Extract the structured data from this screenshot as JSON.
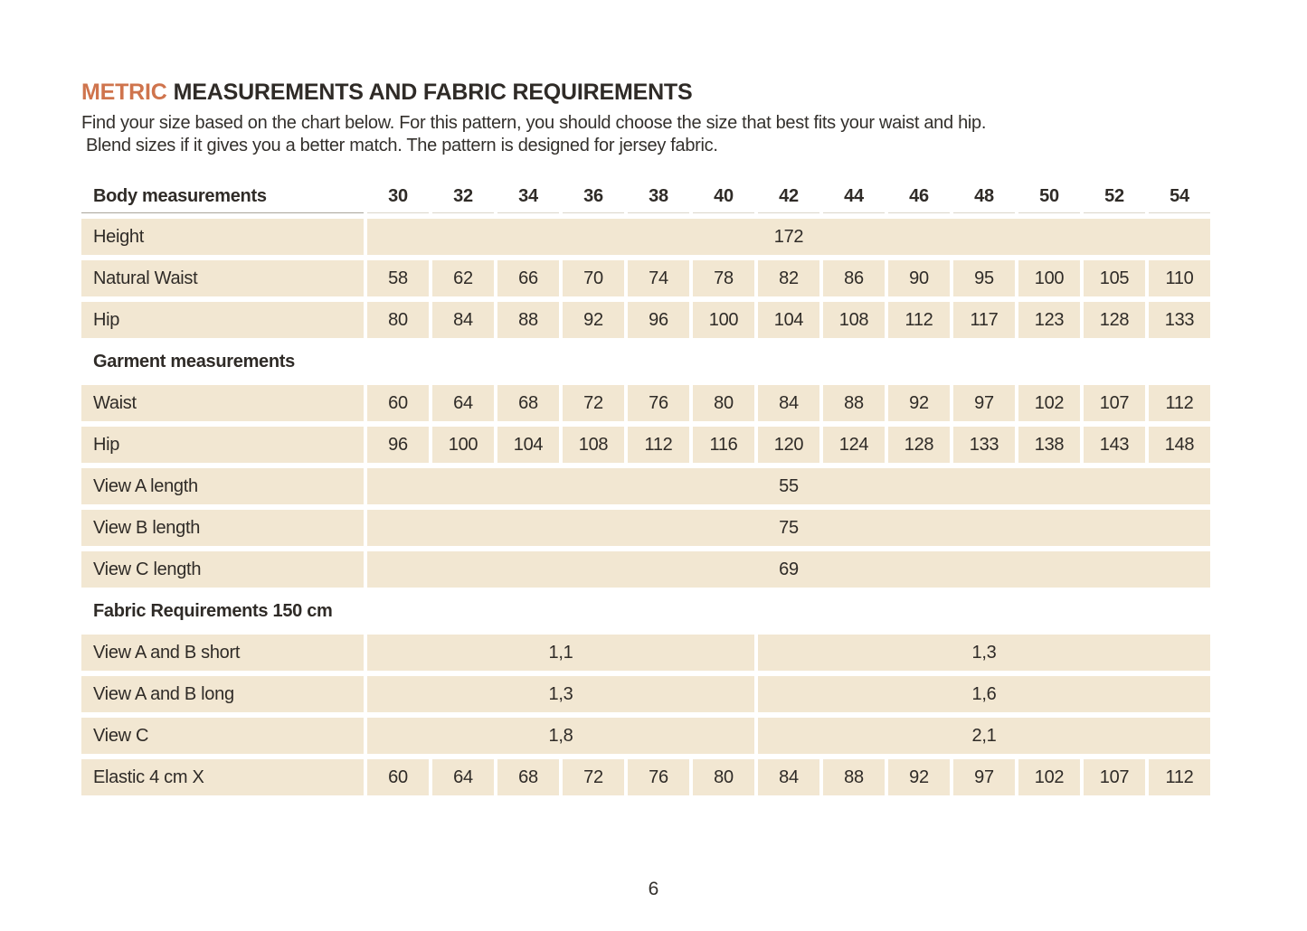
{
  "header": {
    "title_accent": "METRIC",
    "title_rest": "MEASUREMENTS AND FABRIC REQUIREMENTS",
    "intro_line1": "Find your size based on the chart below. For this pattern, you should choose the size that best fits your waist and hip.",
    "intro_line2": "Blend sizes if it gives you a better match.  The pattern is designed for jersey fabric."
  },
  "colors": {
    "accent_orange": "#cf744d",
    "cell_beige": "#f2e7d2",
    "text_dark": "#2f2b27"
  },
  "table": {
    "header": {
      "label": "Body measurements",
      "sizes": [
        "30",
        "32",
        "34",
        "36",
        "38",
        "40",
        "42",
        "44",
        "46",
        "48",
        "50",
        "52",
        "54"
      ]
    },
    "rows": [
      {
        "type": "merged",
        "label": "Height",
        "value": "172"
      },
      {
        "type": "cells",
        "label": "Natural Waist",
        "values": [
          "58",
          "62",
          "66",
          "70",
          "74",
          "78",
          "82",
          "86",
          "90",
          "95",
          "100",
          "105",
          "110"
        ]
      },
      {
        "type": "cells",
        "label": "Hip",
        "values": [
          "80",
          "84",
          "88",
          "92",
          "96",
          "100",
          "104",
          "108",
          "112",
          "117",
          "123",
          "128",
          "133"
        ]
      },
      {
        "type": "section",
        "label": "Garment measurements"
      },
      {
        "type": "cells",
        "label": "Waist",
        "values": [
          "60",
          "64",
          "68",
          "72",
          "76",
          "80",
          "84",
          "88",
          "92",
          "97",
          "102",
          "107",
          "112"
        ]
      },
      {
        "type": "cells",
        "label": "Hip",
        "values": [
          "96",
          "100",
          "104",
          "108",
          "112",
          "116",
          "120",
          "124",
          "128",
          "133",
          "138",
          "143",
          "148"
        ]
      },
      {
        "type": "merged",
        "label": "View A length",
        "value": "55"
      },
      {
        "type": "merged",
        "label": "View B length",
        "value": "75"
      },
      {
        "type": "merged",
        "label": "View C length",
        "value": "69"
      },
      {
        "type": "section",
        "label": "Fabric Requirements 150 cm"
      },
      {
        "type": "split",
        "label": "View A and B  short",
        "values": [
          "1,1",
          "1,3"
        ],
        "spans": [
          6,
          7
        ]
      },
      {
        "type": "split",
        "label": "View A and B long",
        "values": [
          "1,3",
          "1,6"
        ],
        "spans": [
          6,
          7
        ]
      },
      {
        "type": "split",
        "label": "View C",
        "values": [
          "1,8",
          "2,1"
        ],
        "spans": [
          6,
          7
        ]
      },
      {
        "type": "cells",
        "label": "Elastic 4 cm X",
        "values": [
          "60",
          "64",
          "68",
          "72",
          "76",
          "80",
          "84",
          "88",
          "92",
          "97",
          "102",
          "107",
          "112"
        ]
      }
    ]
  },
  "footer": {
    "page_number": "6"
  }
}
